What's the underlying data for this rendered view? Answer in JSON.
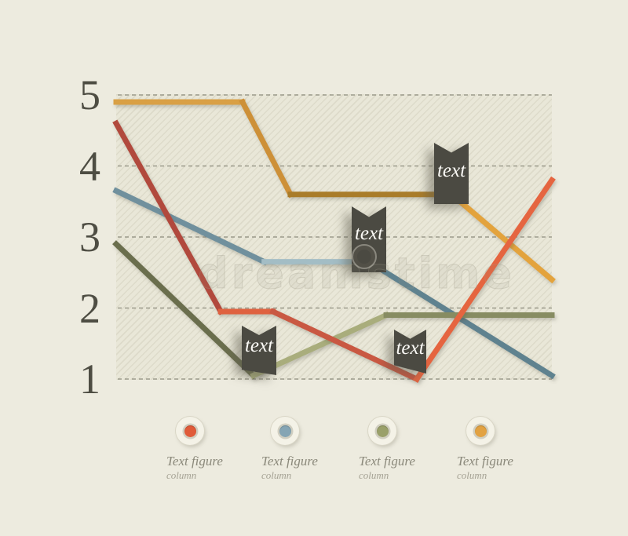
{
  "watermark": {
    "text": "dreamstime"
  },
  "y_axis": {
    "ticks": [
      5,
      4,
      3,
      2,
      1
    ]
  },
  "legend": {
    "position": "bottom",
    "items": [
      {
        "label": "Text figure",
        "sublabel": "column",
        "color": "#e05b39"
      },
      {
        "label": "Text figure",
        "sublabel": "column",
        "color": "#85a5b4"
      },
      {
        "label": "Text figure",
        "sublabel": "column",
        "color": "#9aa06a"
      },
      {
        "label": "Text figure",
        "sublabel": "column",
        "color": "#e2a242"
      }
    ]
  },
  "chart_data": {
    "type": "line",
    "title": "",
    "xlabel": "",
    "ylabel": "",
    "ylim": [
      1,
      5
    ],
    "y_ticks": [
      5,
      4,
      3,
      2,
      1
    ],
    "grid": "horizontal-dashed",
    "x_axis_labels": [],
    "series": [
      {
        "id": "blue",
        "name": "Text figure column (blue)",
        "color": "#85a5b4",
        "segment_colors": [
          "#70909d",
          "#a3bdc5",
          "#5f828f"
        ],
        "points": [
          [
            0,
            3.65
          ],
          [
            0.34,
            2.65
          ],
          [
            0.58,
            2.65
          ],
          [
            1,
            1.05
          ]
        ]
      },
      {
        "id": "olive",
        "name": "Text figure column (olive)",
        "color": "#9aa06a",
        "segment_colors": [
          "#6b6e4d",
          "#a9ad7c",
          "#878c62"
        ],
        "points": [
          [
            0,
            2.9
          ],
          [
            0.315,
            1.05
          ],
          [
            0.62,
            1.9
          ],
          [
            1,
            1.9
          ]
        ]
      },
      {
        "id": "orange",
        "name": "Text figure column (orange)",
        "color": "#e2a242",
        "segment_colors": [
          "#d9a045",
          "#cd9038",
          "#a97b2b",
          "#e3a33c"
        ],
        "points": [
          [
            0,
            4.9
          ],
          [
            0.29,
            4.9
          ],
          [
            0.4,
            3.6
          ],
          [
            0.77,
            3.6
          ],
          [
            1,
            2.4
          ]
        ]
      },
      {
        "id": "red",
        "name": "Text figure column (red)",
        "color": "#e05b39",
        "segment_colors": [
          "#b14a3d",
          "#df6240",
          "#c95942",
          "#e56540"
        ],
        "points": [
          [
            0,
            4.6
          ],
          [
            0.24,
            1.95
          ],
          [
            0.36,
            1.95
          ],
          [
            0.69,
            1.0
          ],
          [
            1,
            3.8
          ]
        ]
      }
    ],
    "annotations": [
      {
        "text": "text",
        "anchor": "orange line step at value 3.6"
      },
      {
        "text": "text",
        "anchor": "blue line step at value 2.65"
      },
      {
        "text": "text",
        "anchor": "olive line minimum at value 1"
      },
      {
        "text": "text",
        "anchor": "red line minimum at value 1"
      }
    ]
  }
}
